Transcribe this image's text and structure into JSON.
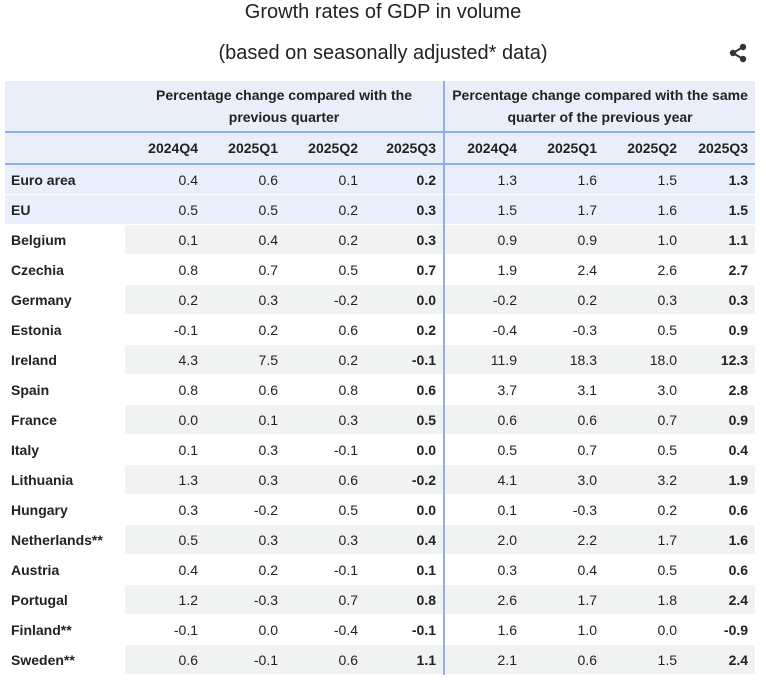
{
  "header": {
    "title": "Growth rates of GDP in volume",
    "subtitle": "(based on seasonally adjusted* data)"
  },
  "table": {
    "groups": [
      "Percentage change compared with the previous quarter",
      "Percentage change compared with the same quarter of the previous year"
    ],
    "columns": [
      "2024Q4",
      "2025Q1",
      "2025Q2",
      "2025Q3",
      "2024Q4",
      "2025Q1",
      "2025Q2",
      "2025Q3"
    ],
    "rows": [
      {
        "label": "Euro area",
        "cells": [
          "0.4",
          "0.6",
          "0.1",
          "0.2",
          "1.3",
          "1.6",
          "1.5",
          "1.3"
        ]
      },
      {
        "label": "EU",
        "cells": [
          "0.5",
          "0.5",
          "0.2",
          "0.3",
          "1.5",
          "1.7",
          "1.6",
          "1.5"
        ]
      },
      {
        "label": "Belgium",
        "cells": [
          "0.1",
          "0.4",
          "0.2",
          "0.3",
          "0.9",
          "0.9",
          "1.0",
          "1.1"
        ]
      },
      {
        "label": "Czechia",
        "cells": [
          "0.8",
          "0.7",
          "0.5",
          "0.7",
          "1.9",
          "2.4",
          "2.6",
          "2.7"
        ]
      },
      {
        "label": "Germany",
        "cells": [
          "0.2",
          "0.3",
          "-0.2",
          "0.0",
          "-0.2",
          "0.2",
          "0.3",
          "0.3"
        ]
      },
      {
        "label": "Estonia",
        "cells": [
          "-0.1",
          "0.2",
          "0.6",
          "0.2",
          "-0.4",
          "-0.3",
          "0.5",
          "0.9"
        ]
      },
      {
        "label": "Ireland",
        "cells": [
          "4.3",
          "7.5",
          "0.2",
          "-0.1",
          "11.9",
          "18.3",
          "18.0",
          "12.3"
        ]
      },
      {
        "label": "Spain",
        "cells": [
          "0.8",
          "0.6",
          "0.8",
          "0.6",
          "3.7",
          "3.1",
          "3.0",
          "2.8"
        ]
      },
      {
        "label": "France",
        "cells": [
          "0.0",
          "0.1",
          "0.3",
          "0.5",
          "0.6",
          "0.6",
          "0.7",
          "0.9"
        ]
      },
      {
        "label": "Italy",
        "cells": [
          "0.1",
          "0.3",
          "-0.1",
          "0.0",
          "0.5",
          "0.7",
          "0.5",
          "0.4"
        ]
      },
      {
        "label": "Lithuania",
        "cells": [
          "1.3",
          "0.3",
          "0.6",
          "-0.2",
          "4.1",
          "3.0",
          "3.2",
          "1.9"
        ]
      },
      {
        "label": "Hungary",
        "cells": [
          "0.3",
          "-0.2",
          "0.5",
          "0.0",
          "0.1",
          "-0.3",
          "0.2",
          "0.6"
        ]
      },
      {
        "label": "Netherlands**",
        "cells": [
          "0.5",
          "0.3",
          "0.3",
          "0.4",
          "2.0",
          "2.2",
          "1.7",
          "1.6"
        ]
      },
      {
        "label": "Austria",
        "cells": [
          "0.4",
          "0.2",
          "-0.1",
          "0.1",
          "0.3",
          "0.4",
          "0.5",
          "0.6"
        ]
      },
      {
        "label": "Portugal",
        "cells": [
          "1.2",
          "-0.3",
          "0.7",
          "0.8",
          "2.6",
          "1.7",
          "1.8",
          "2.4"
        ]
      },
      {
        "label": "Finland**",
        "cells": [
          "-0.1",
          "0.0",
          "-0.4",
          "-0.1",
          "1.6",
          "1.0",
          "0.0",
          "-0.9"
        ]
      },
      {
        "label": "Sweden**",
        "cells": [
          "0.6",
          "-0.1",
          "0.6",
          "1.1",
          "2.1",
          "0.6",
          "1.5",
          "2.4"
        ]
      }
    ]
  }
}
